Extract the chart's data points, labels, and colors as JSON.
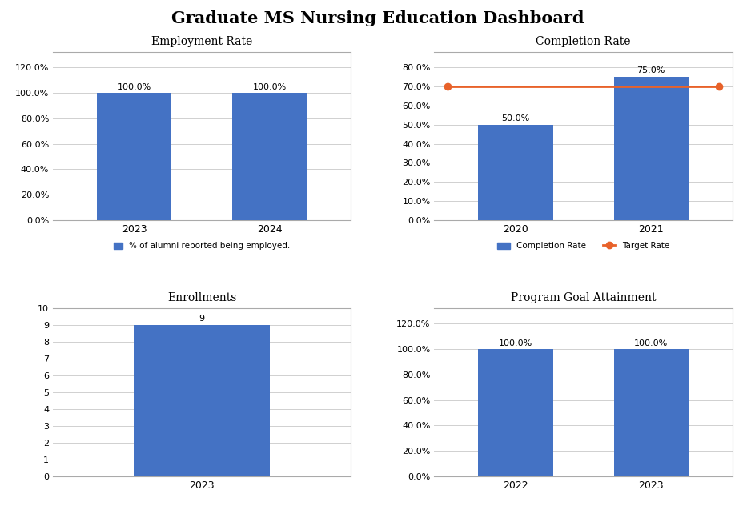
{
  "title": "Graduate MS Nursing Education Dashboard",
  "title_fontsize": 15,
  "title_fontweight": "bold",
  "employment": {
    "title": "Employment Rate",
    "years": [
      "2023",
      "2024"
    ],
    "values": [
      1.0,
      1.0
    ],
    "bar_color": "#4472C4",
    "ylim": [
      0,
      1.32
    ],
    "yticks": [
      0.0,
      0.2,
      0.4,
      0.6,
      0.8,
      1.0,
      1.2
    ],
    "ytick_labels": [
      "0.0%",
      "20.0%",
      "40.0%",
      "60.0%",
      "80.0%",
      "100.0%",
      "120.0%"
    ],
    "bar_labels": [
      "100.0%",
      "100.0%"
    ],
    "legend_label": "% of alumni reported being employed.",
    "bar_width": 0.55
  },
  "completion": {
    "title": "Completion Rate",
    "years": [
      "2020",
      "2021"
    ],
    "values": [
      0.5,
      0.75
    ],
    "bar_color": "#4472C4",
    "ylim": [
      0,
      0.88
    ],
    "yticks": [
      0.0,
      0.1,
      0.2,
      0.3,
      0.4,
      0.5,
      0.6,
      0.7,
      0.8
    ],
    "ytick_labels": [
      "0.0%",
      "10.0%",
      "20.0%",
      "30.0%",
      "40.0%",
      "50.0%",
      "60.0%",
      "70.0%",
      "80.0%"
    ],
    "bar_labels": [
      "50.0%",
      "75.0%"
    ],
    "target_rate": 0.7,
    "target_color": "#E8622A",
    "legend_bar": "Completion Rate",
    "legend_line": "Target Rate",
    "bar_width": 0.55
  },
  "enrollments": {
    "title": "Enrollments",
    "years": [
      "2023"
    ],
    "values": [
      9
    ],
    "bar_color": "#4472C4",
    "ylim": [
      0,
      10
    ],
    "yticks": [
      0,
      1,
      2,
      3,
      4,
      5,
      6,
      7,
      8,
      9,
      10
    ],
    "ytick_labels": [
      "0",
      "1",
      "2",
      "3",
      "4",
      "5",
      "6",
      "7",
      "8",
      "9",
      "10"
    ],
    "bar_labels": [
      "9"
    ],
    "bar_width": 0.55
  },
  "goal": {
    "title": "Program Goal Attainment",
    "years": [
      "2022",
      "2023"
    ],
    "values": [
      1.0,
      1.0
    ],
    "bar_color": "#4472C4",
    "ylim": [
      0,
      1.32
    ],
    "yticks": [
      0.0,
      0.2,
      0.4,
      0.6,
      0.8,
      1.0,
      1.2
    ],
    "ytick_labels": [
      "0.0%",
      "20.0%",
      "40.0%",
      "60.0%",
      "80.0%",
      "100.0%",
      "120.0%"
    ],
    "bar_labels": [
      "100.0%",
      "100.0%"
    ],
    "bar_width": 0.55
  },
  "background_color": "#ffffff",
  "panel_background": "#ffffff",
  "grid_color": "#d0d0d0",
  "border_color": "#aaaaaa"
}
